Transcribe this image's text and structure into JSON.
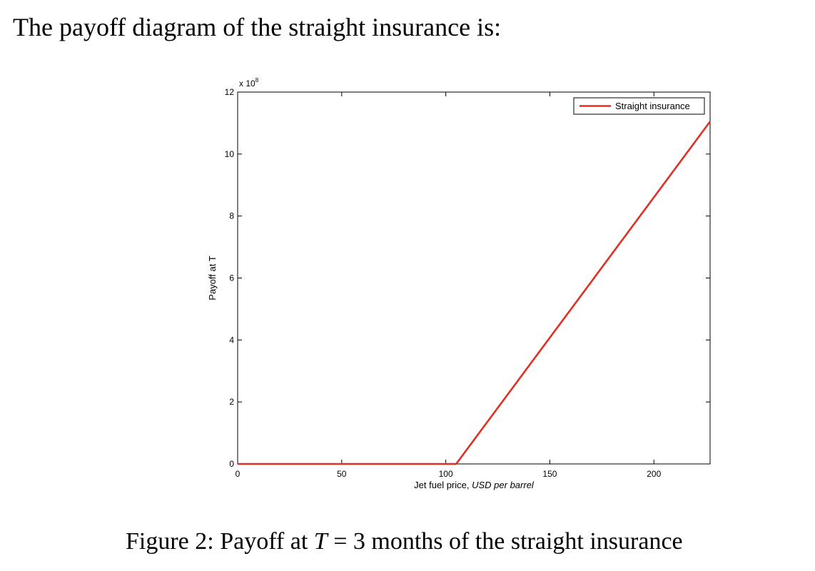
{
  "intro_text": "The payoff diagram of the straight insurance is:",
  "caption": {
    "prefix": "Figure 2:  Payoff at ",
    "var": "T",
    "suffix": " = 3 months of the straight insurance"
  },
  "chart_data": {
    "type": "line",
    "title": "",
    "xlabel_plain": "Jet fuel price, ",
    "xlabel_italic": "USD per barrel",
    "ylabel": "Payoff at T",
    "y_exponent_label": "x 10",
    "y_exponent_power": "8",
    "xlim": [
      0,
      227
    ],
    "ylim": [
      0,
      12
    ],
    "xticks": [
      0,
      50,
      100,
      150,
      200
    ],
    "yticks": [
      0,
      2,
      4,
      6,
      8,
      10,
      12
    ],
    "grid": false,
    "legend_position": "top-right",
    "series": [
      {
        "name": "Straight insurance",
        "color": "#e03024",
        "x": [
          0,
          105,
          227
        ],
        "y": [
          0,
          0,
          11.05
        ]
      }
    ]
  }
}
